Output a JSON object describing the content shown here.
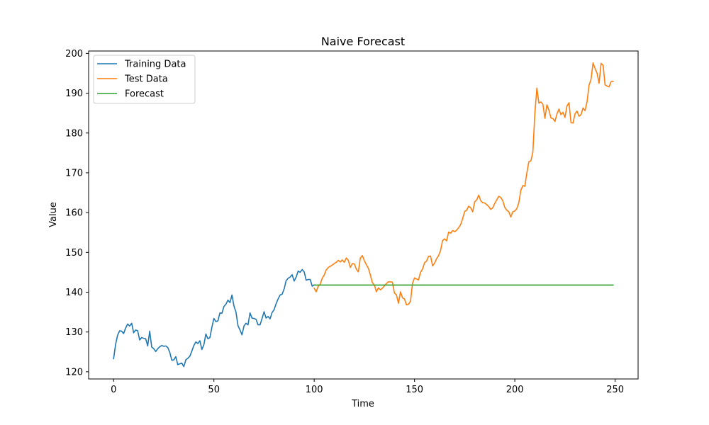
{
  "chart_data": {
    "type": "line",
    "title": "Naive Forecast",
    "xlabel": "Time",
    "ylabel": "Value",
    "xlim": [
      -12.45,
      261.45
    ],
    "ylim": [
      118.2,
      200.6
    ],
    "xticks": [
      0,
      50,
      100,
      150,
      200,
      250
    ],
    "yticks": [
      120,
      130,
      140,
      150,
      160,
      170,
      180,
      190,
      200
    ],
    "grid": false,
    "legend_position": "upper-left",
    "series": [
      {
        "name": "Training Data",
        "color": "#1f77b4",
        "x_start": 0,
        "values": [
          123.3,
          126.9,
          129.2,
          130.3,
          130.2,
          129.6,
          131.0,
          132.0,
          131.5,
          132.2,
          129.8,
          130.5,
          130.3,
          128.0,
          128.6,
          128.4,
          128.3,
          126.5,
          130.2,
          126.2,
          125.8,
          125.1,
          125.8,
          126.3,
          126.6,
          126.4,
          126.5,
          126.1,
          124.9,
          122.9,
          123.0,
          123.8,
          121.8,
          122.0,
          122.2,
          121.3,
          123.0,
          123.4,
          123.9,
          125.2,
          126.6,
          127.5,
          127.1,
          127.8,
          125.6,
          126.8,
          129.5,
          128.3,
          128.6,
          131.2,
          133.4,
          132.6,
          132.8,
          134.8,
          134.7,
          136.4,
          137.0,
          138.0,
          137.4,
          139.3,
          136.5,
          135.0,
          131.6,
          130.5,
          129.3,
          131.5,
          132.2,
          131.8,
          134.8,
          133.5,
          133.4,
          133.2,
          131.8,
          131.8,
          133.4,
          135.1,
          133.5,
          133.9,
          133.3,
          134.9,
          135.6,
          137.1,
          138.3,
          139.3,
          139.5,
          140.8,
          142.9,
          143.5,
          143.8,
          144.4,
          142.8,
          143.8,
          145.3,
          145.0,
          145.7,
          145.1,
          143.0,
          143.2,
          143.2,
          141.5,
          141.8
        ]
      },
      {
        "name": "Test Data",
        "color": "#ff7f0e",
        "x_start": 100,
        "values": [
          141.0,
          140.1,
          141.5,
          142.0,
          143.5,
          144.3,
          145.6,
          146.2,
          146.5,
          146.8,
          147.2,
          147.5,
          148.0,
          147.6,
          148.1,
          147.5,
          148.6,
          148.0,
          146.2,
          147.2,
          147.1,
          145.8,
          145.1,
          148.6,
          149.2,
          147.9,
          146.9,
          146.0,
          144.3,
          142.4,
          141.8,
          140.1,
          141.1,
          140.6,
          141.0,
          141.6,
          142.2,
          142.6,
          142.6,
          142.5,
          139.8,
          139.3,
          137.2,
          140.1,
          138.6,
          138.3,
          136.8,
          137.0,
          137.7,
          142.2,
          143.6,
          143.3,
          143.1,
          145.0,
          145.8,
          147.4,
          147.8,
          149.0,
          149.1,
          146.6,
          147.3,
          148.4,
          149.2,
          150.5,
          153.0,
          153.4,
          152.9,
          155.1,
          154.8,
          155.5,
          155.2,
          155.6,
          156.2,
          157.0,
          158.5,
          160.3,
          160.6,
          161.6,
          161.2,
          160.2,
          162.7,
          163.2,
          164.4,
          163.0,
          162.5,
          162.4,
          162.0,
          161.5,
          160.8,
          161.2,
          162.3,
          163.2,
          164.1,
          163.8,
          163.0,
          161.3,
          160.6,
          160.2,
          158.9,
          160.2,
          160.4,
          161.0,
          162.5,
          165.6,
          166.8,
          166.6,
          170.0,
          172.8,
          173.0,
          175.2,
          185.0,
          191.3,
          187.5,
          187.8,
          187.2,
          183.7,
          187.1,
          185.7,
          183.8,
          183.6,
          182.9,
          184.8,
          186.0,
          184.6,
          185.2,
          183.9,
          186.8,
          187.6,
          182.6,
          182.5,
          184.8,
          185.5,
          184.2,
          184.6,
          186.3,
          185.6,
          187.8,
          192.0,
          193.5,
          197.6,
          196.2,
          195.0,
          192.5,
          197.5,
          197.0,
          192.1,
          191.8,
          191.6,
          192.9,
          193.0
        ]
      },
      {
        "name": "Forecast",
        "color": "#2ca02c",
        "x_range": [
          100,
          249
        ],
        "value": 141.8
      }
    ]
  }
}
